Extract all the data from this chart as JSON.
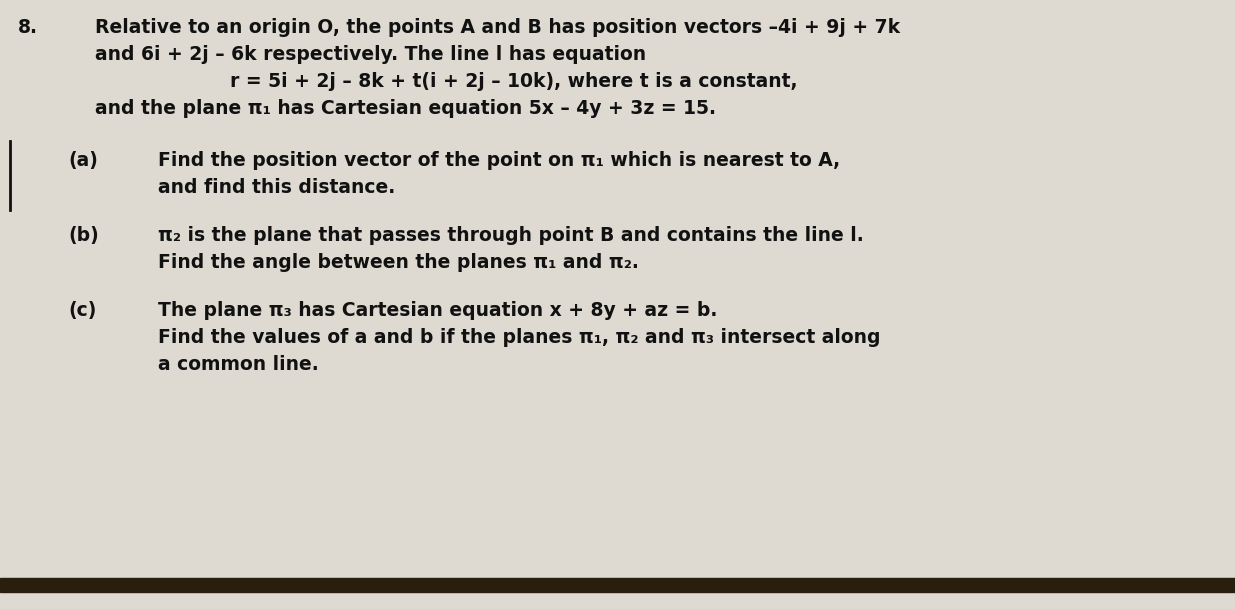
{
  "background_color": "#dedad2",
  "bottom_bar_color": "#2a1e0e",
  "text_color": "#111111",
  "question_number": "8.",
  "intro_line1": "Relative to an origin O, the points A and B has position vectors –4i + 9j + 7k",
  "intro_line2": "and 6i + 2j – 6k respectively. The line l has equation",
  "equation_line": "r = 5i + 2j – 8k + t(i + 2j – 10k), where t is a constant,",
  "intro_line3": "and the plane π₁ has Cartesian equation 5x – 4y + 3z = 15.",
  "part_a_label": "(a)",
  "part_a_line1": "Find the position vector of the point on π₁ which is nearest to A,",
  "part_a_line2": "and find this distance.",
  "part_b_label": "(b)",
  "part_b_line1": "π₂ is the plane that passes through point B and contains the line l.",
  "part_b_line2": "Find the angle between the planes π₁ and π₂.",
  "part_c_label": "(c)",
  "part_c_line1": "The plane π₃ has Cartesian equation x + 8y + az = b.",
  "part_c_line2": "Find the values of a and b if the planes π₁, π₂ and π₃ intersect along",
  "part_c_line3": "a common line.",
  "font_size_main": 13.5
}
